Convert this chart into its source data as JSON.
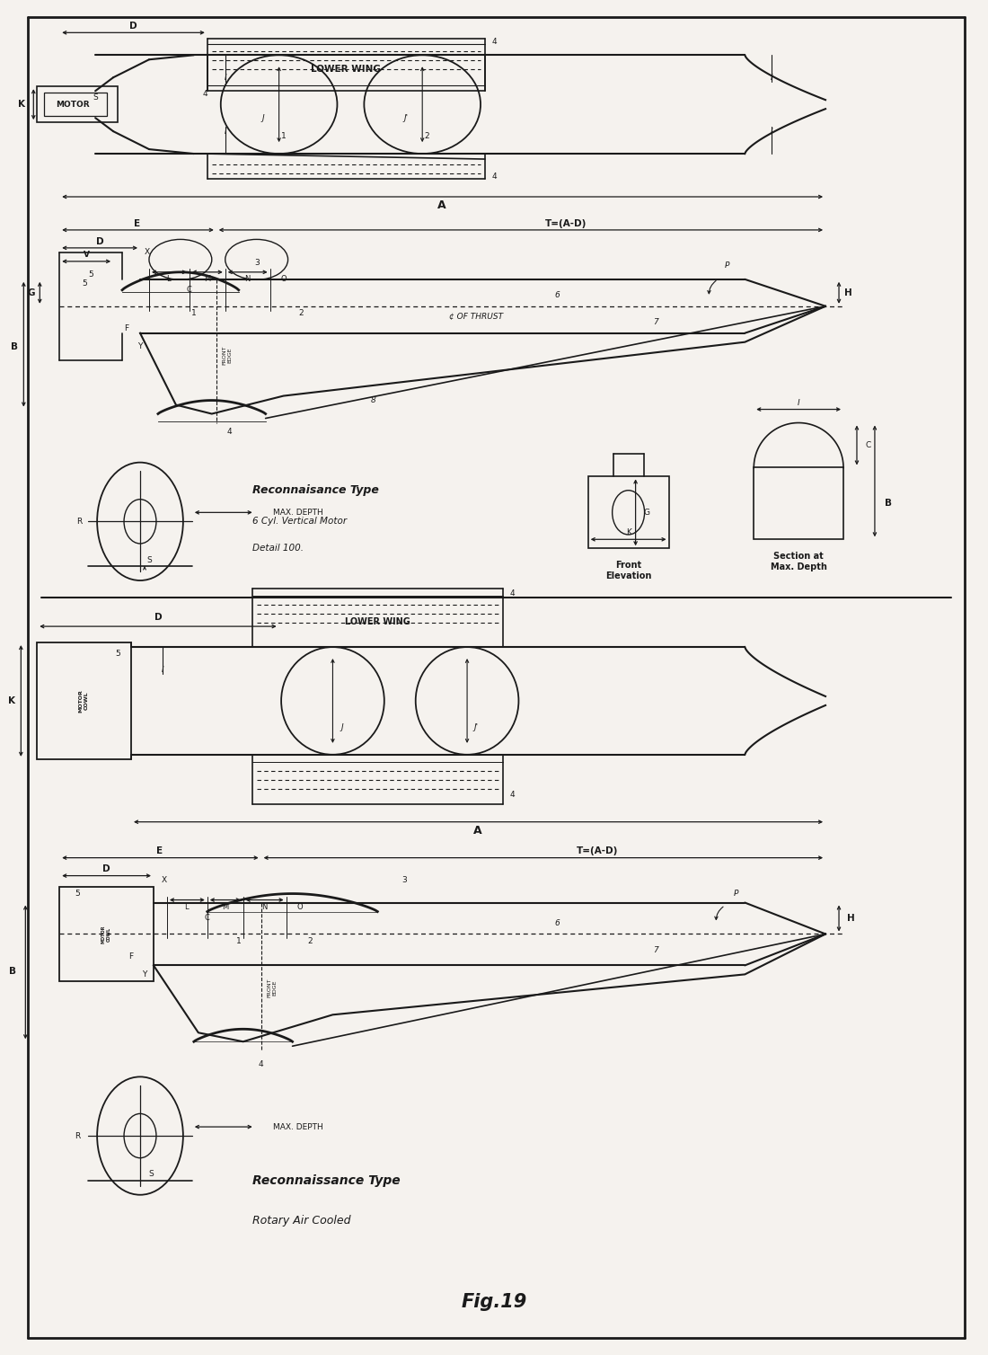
{
  "title": "Fig.19",
  "bg_color": "#f5f2ee",
  "line_color": "#1a1a1a",
  "figure_width": 11.0,
  "figure_height": 15.08,
  "top_label1": "Reconnaisance Type",
  "top_label2": "6 Cyl. Vertical Motor",
  "top_label3": "Detail 100.",
  "bot_label1": "Reconnaissance Type",
  "bot_label2": "Rotary Air Cooled",
  "front_elev": "Front\nElevation",
  "section_label": "Section at\nMax. Depth"
}
